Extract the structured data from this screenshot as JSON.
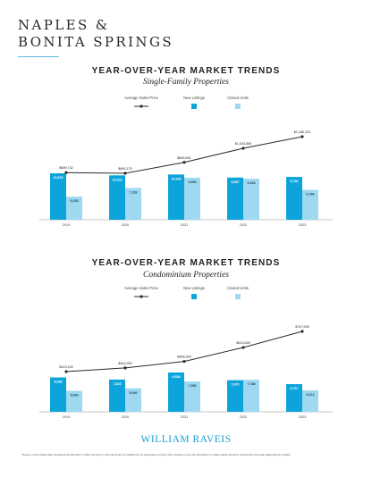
{
  "region": {
    "line1": "NAPLES &",
    "line2": "BONITA SPRINGS"
  },
  "charts": [
    {
      "title": "YEAR-OVER-YEAR MARKET TRENDS",
      "subtitle": "Single-Family Properties"
    },
    {
      "title": "YEAR-OVER-YEAR MARKET TRENDS",
      "subtitle": "Condominium Properties"
    }
  ],
  "legend": {
    "price": "Average Sales Price",
    "listings": "New Listings",
    "closed": "Closed Units"
  },
  "colors": {
    "listings": "#0da4dc",
    "closed": "#9fd9f1",
    "price_line": "#2b2b2b",
    "axis": "#b5b5b5",
    "accent_rule": "#5fb9e0",
    "brand": "#1aa0d8"
  },
  "brand": "WILLIAM RAVEIS",
  "footnote": "*Source of this market data: Southwest Florida MLS © 2023. Accuracy of this information is reliable but not guaranteed. Anyone who chooses to use this information to make market decisions should have this data independently verified.",
  "chart_data": [
    {
      "type": "bar",
      "categories": [
        "2019",
        "2020",
        "2021",
        "2022",
        "2023"
      ],
      "series": [
        {
          "name": "New Listings",
          "kind": "bar",
          "values": [
            10570,
            10103,
            10296,
            9597,
            9746
          ],
          "labels": [
            "10,570",
            "10,103",
            "10,296",
            "9,597",
            "9,746"
          ]
        },
        {
          "name": "Closed Units",
          "kind": "bar",
          "values": [
            5253,
            7236,
            9555,
            9343,
            6789
          ],
          "labels": [
            "5,253",
            "7,236",
            "9,555",
            "9,343",
            "6,789"
          ]
        },
        {
          "name": "Average Sales Price",
          "kind": "line",
          "values": [
            699742,
            690170,
            836551,
            1024650,
            1180101
          ],
          "labels": [
            "$699,742",
            "$690,170",
            "$836,551",
            "$1,024,650",
            "$1,180,101"
          ]
        }
      ],
      "bar_max": 10570,
      "price_range": [
        690170,
        1180101
      ]
    },
    {
      "type": "bar",
      "categories": [
        "2019",
        "2020",
        "2021",
        "2022",
        "2023"
      ],
      "series": [
        {
          "name": "New Listings",
          "kind": "bar",
          "values": [
            8338,
            7823,
            9538,
            7670,
            6707
          ],
          "labels": [
            "8,338",
            "7,823",
            "9,538",
            "7,670",
            "6,707"
          ]
        },
        {
          "name": "Closed Units",
          "kind": "bar",
          "values": [
            5094,
            5690,
            7358,
            7788,
            5213
          ],
          "labels": [
            "5,094",
            "5,690",
            "7,358",
            "7,788",
            "5,213"
          ]
        },
        {
          "name": "Average Sales Price",
          "kind": "line",
          "values": [
            413433,
            444302,
            498304,
            613826,
            747949
          ],
          "labels": [
            "$413,433",
            "$444,302",
            "$498,304",
            "$613,826",
            "$747,949"
          ]
        }
      ],
      "bar_max": 9538,
      "price_range": [
        413433,
        747949
      ]
    }
  ]
}
